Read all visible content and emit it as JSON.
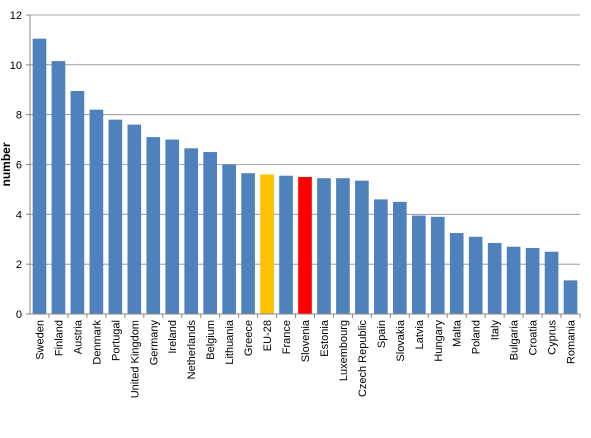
{
  "chart_data": {
    "type": "bar",
    "title": "",
    "xlabel": "",
    "ylabel": "number",
    "ylim": [
      0,
      12
    ],
    "yticks": [
      0,
      2,
      4,
      6,
      8,
      10,
      12
    ],
    "grid": "horizontal",
    "legend": "none",
    "default_color": "#4F81BD",
    "highlight_colors": {
      "EU-28": "#FFC000",
      "Slovenia": "#FF0000"
    },
    "categories": [
      "Sweden",
      "Finland",
      "Austria",
      "Denmark",
      "Portugal",
      "United Kingdom",
      "Germany",
      "Ireland",
      "Netherlands",
      "Belgium",
      "Lithuania",
      "Greece",
      "EU-28",
      "France",
      "Slovenia",
      "Estonia",
      "Luxembourg",
      "Czech Republic",
      "Spain",
      "Slovakia",
      "Latvia",
      "Hungary",
      "Malta",
      "Poland",
      "Italy",
      "Bulgaria",
      "Croatia",
      "Cyprus",
      "Romania"
    ],
    "values": [
      11.05,
      10.15,
      8.95,
      8.2,
      7.8,
      7.6,
      7.1,
      7.0,
      6.65,
      6.5,
      6.0,
      5.65,
      5.6,
      5.55,
      5.5,
      5.45,
      5.45,
      5.35,
      4.6,
      4.5,
      3.95,
      3.9,
      3.25,
      3.1,
      2.85,
      2.7,
      2.65,
      2.5,
      1.35
    ]
  }
}
